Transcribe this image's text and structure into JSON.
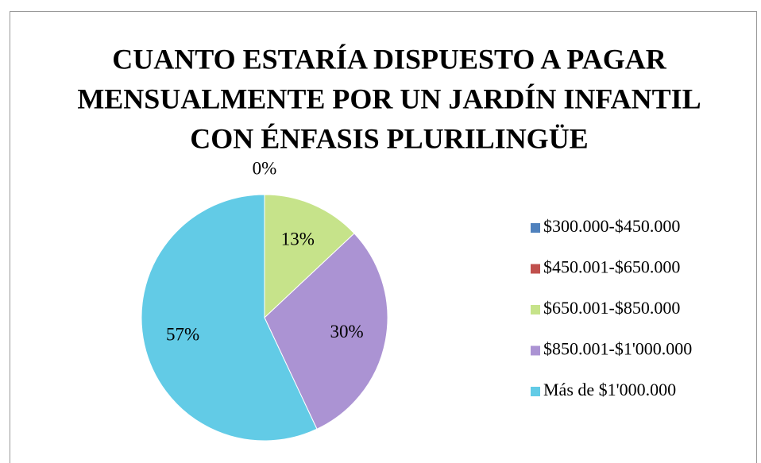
{
  "chart_data": {
    "type": "pie",
    "title": [
      "CUANTO ESTARÍA DISPUESTO A PAGAR",
      "MENSUALMENTE POR UN JARDÍN INFANTIL",
      "CON ÉNFASIS PLURILINGÜE"
    ],
    "categories": [
      "$300.000-$450.000",
      "$450.001-$650.000",
      "$650.001-$850.000",
      "$850.001-$1'000.000",
      "Más de $1'000.000"
    ],
    "values": [
      0,
      0,
      13,
      30,
      57
    ],
    "value_labels": [
      "0%",
      null,
      "13%",
      "30%",
      "57%"
    ],
    "colors": [
      "#4f81bd",
      "#c0504d",
      "#c6e38a",
      "#ab93d3",
      "#62cbe6"
    ],
    "legend": "right"
  }
}
